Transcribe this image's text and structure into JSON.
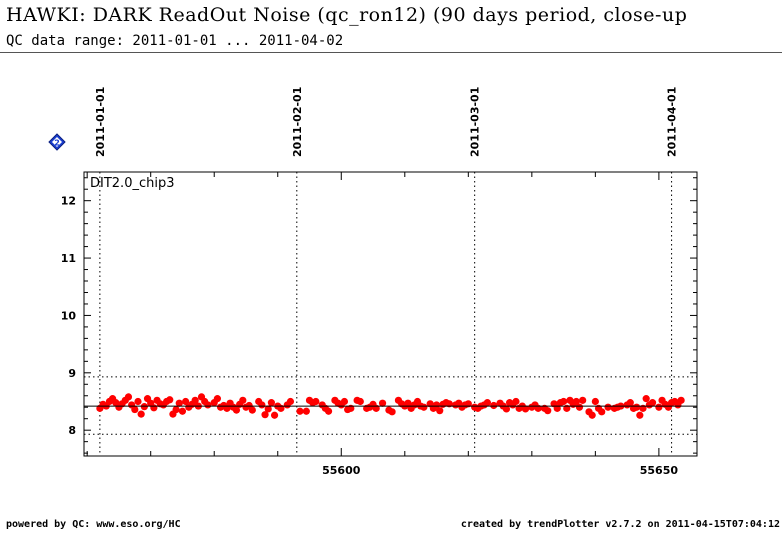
{
  "header": {
    "title": "HAWKI: DARK ReadOut Noise (qc_ron12) (90 days period, close-up",
    "subtitle": "QC data range: 2011-01-01 ... 2011-04-02"
  },
  "footer": {
    "left": "powered by QC: www.eso.org/HC",
    "right": "created by trendPlotter v2.7.2 on 2011-04-15T07:04:12"
  },
  "colors": {
    "points": "#ff0000",
    "nav_icon": "#1a3fd0"
  },
  "icons": {
    "nav": "diamond-2-icon"
  },
  "chart_data": {
    "type": "scatter",
    "panel_label": "DIT2.0_chip3",
    "xlim": [
      55559.5,
      55656
    ],
    "ylim": [
      7.55,
      12.5
    ],
    "xticks": [
      55600,
      55650
    ],
    "yticks": [
      8,
      9,
      10,
      11,
      12
    ],
    "date_markers": [
      {
        "label": "2011-01-01",
        "x": 55562
      },
      {
        "label": "2011-02-01",
        "x": 55593
      },
      {
        "label": "2011-03-01",
        "x": 55621
      },
      {
        "label": "2011-04-01",
        "x": 55652
      }
    ],
    "reference_lines": {
      "mean": 8.42,
      "upper": 8.93,
      "lower": 7.93
    },
    "grid": "dotted date markers",
    "points": [
      [
        55562.0,
        8.38
      ],
      [
        55562.5,
        8.45
      ],
      [
        55563.0,
        8.42
      ],
      [
        55563.5,
        8.5
      ],
      [
        55564.0,
        8.55
      ],
      [
        55564.5,
        8.48
      ],
      [
        55565.0,
        8.4
      ],
      [
        55565.5,
        8.46
      ],
      [
        55566.0,
        8.52
      ],
      [
        55566.5,
        8.58
      ],
      [
        55567.0,
        8.44
      ],
      [
        55567.5,
        8.36
      ],
      [
        55568.0,
        8.5
      ],
      [
        55568.5,
        8.28
      ],
      [
        55569.0,
        8.41
      ],
      [
        55569.5,
        8.55
      ],
      [
        55570.0,
        8.47
      ],
      [
        55570.5,
        8.39
      ],
      [
        55571.0,
        8.52
      ],
      [
        55571.5,
        8.46
      ],
      [
        55572.0,
        8.44
      ],
      [
        55572.5,
        8.5
      ],
      [
        55573.0,
        8.53
      ],
      [
        55573.5,
        8.28
      ],
      [
        55574.0,
        8.36
      ],
      [
        55574.5,
        8.47
      ],
      [
        55575.0,
        8.33
      ],
      [
        55575.5,
        8.5
      ],
      [
        55576.0,
        8.4
      ],
      [
        55576.5,
        8.45
      ],
      [
        55577.0,
        8.52
      ],
      [
        55577.5,
        8.42
      ],
      [
        55578.0,
        8.58
      ],
      [
        55578.5,
        8.5
      ],
      [
        55579.0,
        8.44
      ],
      [
        55580.0,
        8.48
      ],
      [
        55580.5,
        8.55
      ],
      [
        55581.0,
        8.4
      ],
      [
        55581.5,
        8.43
      ],
      [
        55582.0,
        8.38
      ],
      [
        55582.5,
        8.47
      ],
      [
        55583.0,
        8.4
      ],
      [
        55583.5,
        8.35
      ],
      [
        55584.0,
        8.45
      ],
      [
        55584.5,
        8.52
      ],
      [
        55585.0,
        8.4
      ],
      [
        55585.5,
        8.43
      ],
      [
        55586.0,
        8.35
      ],
      [
        55587.0,
        8.5
      ],
      [
        55587.5,
        8.44
      ],
      [
        55588.0,
        8.27
      ],
      [
        55588.5,
        8.37
      ],
      [
        55589.0,
        8.48
      ],
      [
        55589.5,
        8.26
      ],
      [
        55590.0,
        8.42
      ],
      [
        55590.5,
        8.38
      ],
      [
        55591.5,
        8.44
      ],
      [
        55592.0,
        8.5
      ],
      [
        55593.5,
        8.33
      ],
      [
        55594.5,
        8.33
      ],
      [
        55595.0,
        8.52
      ],
      [
        55595.5,
        8.48
      ],
      [
        55596.0,
        8.5
      ],
      [
        55597.0,
        8.44
      ],
      [
        55597.5,
        8.38
      ],
      [
        55598.0,
        8.33
      ],
      [
        55599.0,
        8.52
      ],
      [
        55599.5,
        8.47
      ],
      [
        55600.0,
        8.44
      ],
      [
        55600.5,
        8.5
      ],
      [
        55601.0,
        8.36
      ],
      [
        55601.5,
        8.38
      ],
      [
        55602.5,
        8.52
      ],
      [
        55603.0,
        8.5
      ],
      [
        55604.0,
        8.38
      ],
      [
        55604.5,
        8.4
      ],
      [
        55605.0,
        8.45
      ],
      [
        55605.5,
        8.38
      ],
      [
        55606.5,
        8.47
      ],
      [
        55607.5,
        8.35
      ],
      [
        55608.0,
        8.32
      ],
      [
        55609.0,
        8.52
      ],
      [
        55609.5,
        8.46
      ],
      [
        55610.0,
        8.42
      ],
      [
        55610.5,
        8.47
      ],
      [
        55611.0,
        8.38
      ],
      [
        55611.5,
        8.44
      ],
      [
        55612.0,
        8.5
      ],
      [
        55612.5,
        8.42
      ],
      [
        55613.0,
        8.4
      ],
      [
        55614.0,
        8.46
      ],
      [
        55614.5,
        8.38
      ],
      [
        55615.0,
        8.44
      ],
      [
        55615.5,
        8.34
      ],
      [
        55616.0,
        8.45
      ],
      [
        55616.5,
        8.48
      ],
      [
        55617.0,
        8.46
      ],
      [
        55618.0,
        8.44
      ],
      [
        55618.5,
        8.47
      ],
      [
        55619.0,
        8.4
      ],
      [
        55619.5,
        8.44
      ],
      [
        55620.0,
        8.46
      ],
      [
        55621.0,
        8.4
      ],
      [
        55621.5,
        8.38
      ],
      [
        55622.0,
        8.42
      ],
      [
        55622.5,
        8.44
      ],
      [
        55623.0,
        8.48
      ],
      [
        55624.0,
        8.43
      ],
      [
        55625.0,
        8.47
      ],
      [
        55625.5,
        8.42
      ],
      [
        55626.0,
        8.37
      ],
      [
        55626.5,
        8.48
      ],
      [
        55627.0,
        8.44
      ],
      [
        55627.5,
        8.5
      ],
      [
        55628.0,
        8.38
      ],
      [
        55628.5,
        8.42
      ],
      [
        55629.0,
        8.37
      ],
      [
        55630.0,
        8.4
      ],
      [
        55630.5,
        8.44
      ],
      [
        55631.0,
        8.38
      ],
      [
        55632.0,
        8.38
      ],
      [
        55632.5,
        8.34
      ],
      [
        55633.5,
        8.46
      ],
      [
        55634.0,
        8.38
      ],
      [
        55634.5,
        8.48
      ],
      [
        55635.0,
        8.5
      ],
      [
        55635.5,
        8.38
      ],
      [
        55636.0,
        8.52
      ],
      [
        55636.5,
        8.45
      ],
      [
        55637.0,
        8.5
      ],
      [
        55637.5,
        8.4
      ],
      [
        55638.0,
        8.52
      ],
      [
        55639.0,
        8.32
      ],
      [
        55639.5,
        8.26
      ],
      [
        55640.0,
        8.5
      ],
      [
        55640.5,
        8.38
      ],
      [
        55641.0,
        8.32
      ],
      [
        55642.0,
        8.4
      ],
      [
        55643.0,
        8.38
      ],
      [
        55643.5,
        8.4
      ],
      [
        55644.0,
        8.42
      ],
      [
        55645.0,
        8.44
      ],
      [
        55645.5,
        8.48
      ],
      [
        55646.0,
        8.38
      ],
      [
        55646.5,
        8.4
      ],
      [
        55647.0,
        8.26
      ],
      [
        55647.5,
        8.38
      ],
      [
        55648.0,
        8.55
      ],
      [
        55648.5,
        8.44
      ],
      [
        55649.0,
        8.48
      ],
      [
        55650.0,
        8.4
      ],
      [
        55650.5,
        8.52
      ],
      [
        55651.0,
        8.45
      ],
      [
        55651.5,
        8.4
      ],
      [
        55652.0,
        8.48
      ],
      [
        55652.5,
        8.5
      ],
      [
        55653.0,
        8.44
      ],
      [
        55653.5,
        8.52
      ]
    ]
  }
}
